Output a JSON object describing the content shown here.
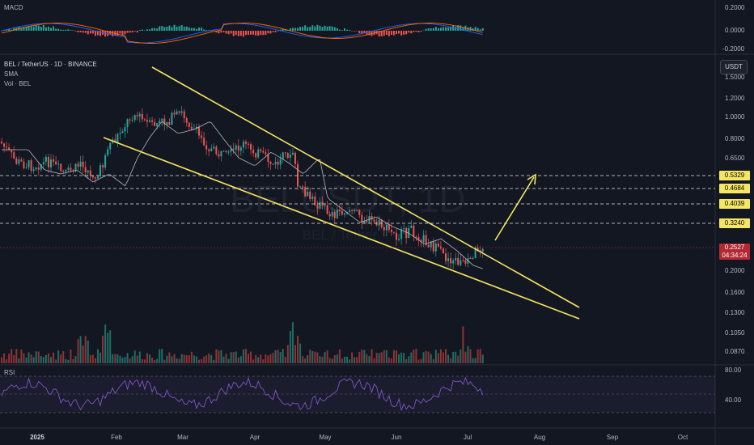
{
  "chart_data": [
    {
      "type": "line",
      "pane": "macd",
      "title": "MACD",
      "y_ticks": [
        "0.2000",
        "0.0000",
        "-0.2000"
      ]
    },
    {
      "type": "candlestick",
      "pane": "price",
      "title": "BEL / TetherUS · 1D · BINANCE",
      "indicators": [
        "SMA",
        "Vol · BEL"
      ],
      "watermark": "BELUSDT, 1D",
      "watermark_sub": "BEL / Tether",
      "currency": "USDT",
      "y_scale": "log",
      "y_ticks": [
        "1.5000",
        "1.2000",
        "1.0000",
        "0.8000",
        "0.6500",
        "0.2000",
        "0.1600",
        "0.1300",
        "0.1050",
        "0.0870"
      ],
      "levels": [
        "0.5329",
        "0.4684",
        "0.4039",
        "0.3240"
      ],
      "current_price": "0.2527",
      "countdown": "04:34:24",
      "x_ticks": [
        "2025",
        "Feb",
        "Mar",
        "Apr",
        "May",
        "Jun",
        "Jul",
        "Aug",
        "Sep",
        "Oct"
      ],
      "colors": {
        "up": "#26a69a",
        "down": "#ef5350",
        "trendline": "#f5e663",
        "sma": "#b2b5be"
      }
    },
    {
      "type": "line",
      "pane": "rsi",
      "title": "RSI",
      "y_ticks": [
        "80.00",
        "40.00"
      ]
    }
  ]
}
